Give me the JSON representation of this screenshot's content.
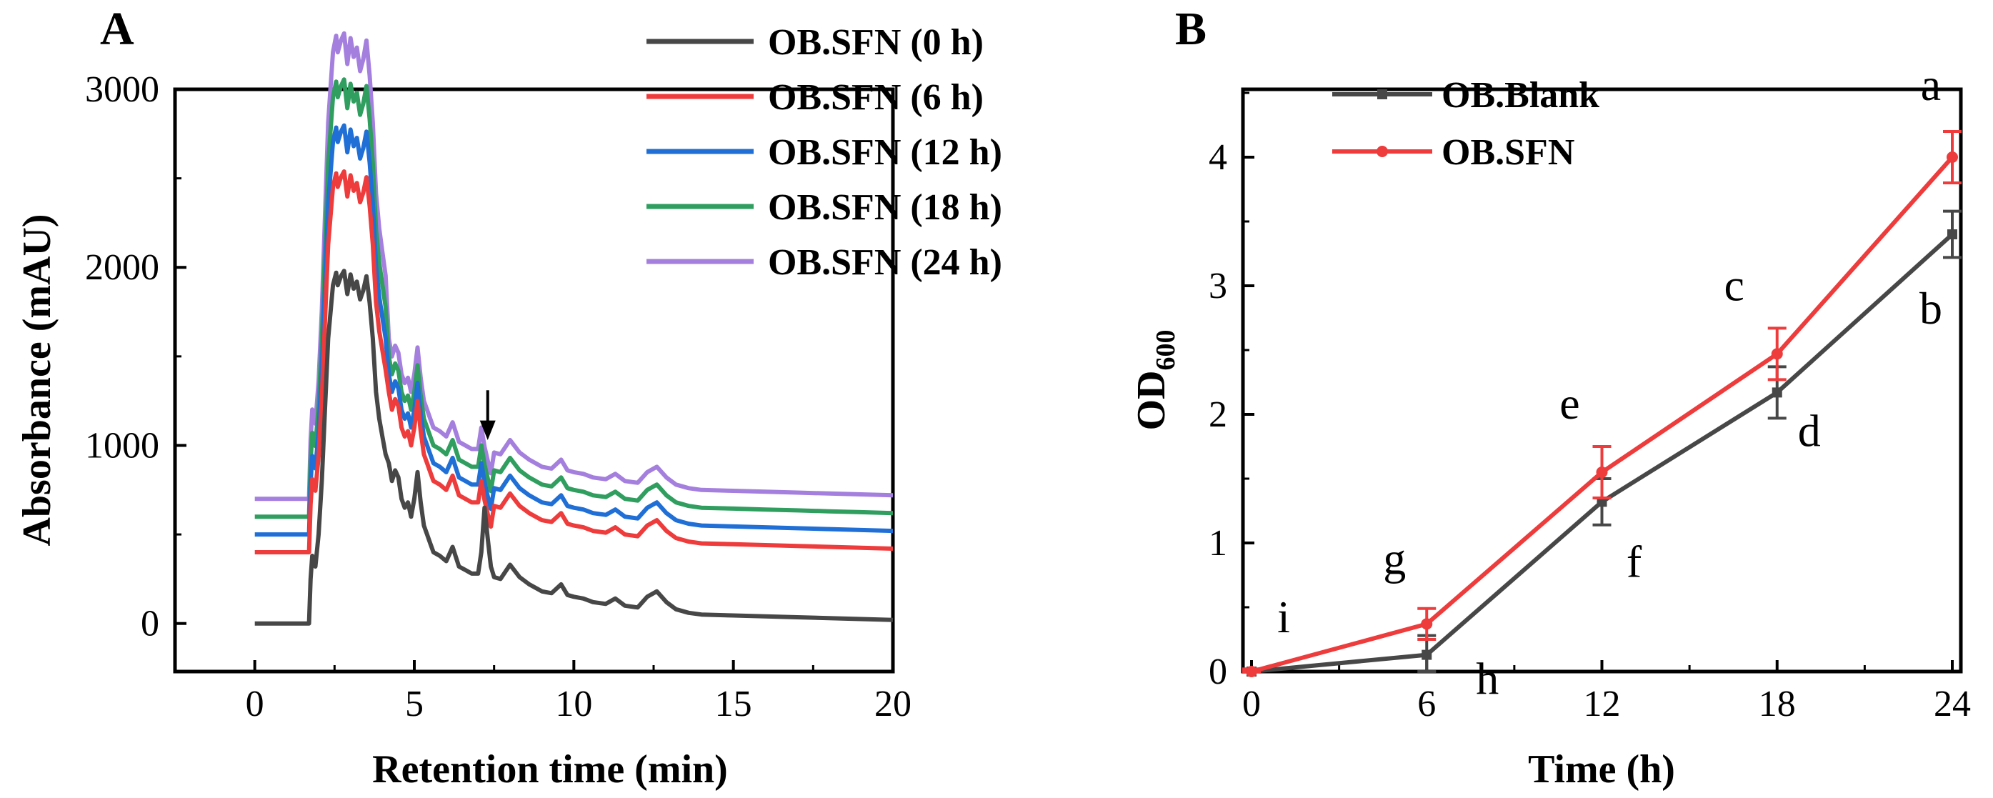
{
  "panelA": {
    "label": "A",
    "chart_data": {
      "type": "line",
      "xlabel": "Retention time (min)",
      "ylabel": "Absorbance (mAU)",
      "xlim": [
        -2.5,
        20
      ],
      "ylim": [
        -270,
        3000
      ],
      "xticks": [
        0,
        5,
        10,
        15,
        20
      ],
      "yticks": [
        0,
        1000,
        2000,
        3000
      ],
      "legend_position": "top-right",
      "annotation": "arrow at 7.3 min",
      "arrow_x": 7.3,
      "series": [
        {
          "name": "OB.SFN (0 h)",
          "color": "#474747",
          "offset": 0
        },
        {
          "name": "OB.SFN (6 h)",
          "color": "#ee3b3b",
          "offset": 400
        },
        {
          "name": "OB.SFN (12 h)",
          "color": "#1f6fd6",
          "offset": 500
        },
        {
          "name": "OB.SFN (18 h)",
          "color": "#2f9e5f",
          "offset": 600
        },
        {
          "name": "OB.SFN (24 h)",
          "color": "#a57fde",
          "offset": 700
        }
      ],
      "base_profile": {
        "x": [
          0,
          1.7,
          1.75,
          1.8,
          1.9,
          2.0,
          2.1,
          2.2,
          2.3,
          2.45,
          2.55,
          2.6,
          2.7,
          2.8,
          2.9,
          3.0,
          3.1,
          3.2,
          3.3,
          3.4,
          3.5,
          3.6,
          3.7,
          3.8,
          3.9,
          4.0,
          4.1,
          4.2,
          4.3,
          4.4,
          4.5,
          4.6,
          4.7,
          4.8,
          4.9,
          5.0,
          5.1,
          5.2,
          5.3,
          5.4,
          5.5,
          5.6,
          5.8,
          6.0,
          6.2,
          6.4,
          6.6,
          6.8,
          7.0,
          7.1,
          7.2,
          7.3,
          7.4,
          7.5,
          7.7,
          8.0,
          8.3,
          8.6,
          9.0,
          9.3,
          9.6,
          9.8,
          10.0,
          10.3,
          10.6,
          11.0,
          11.3,
          11.6,
          12.0,
          12.3,
          12.6,
          12.9,
          13.2,
          13.6,
          14.0,
          15.0,
          16.0,
          17.0,
          18.0,
          19.0,
          20.0
        ],
        "y": [
          0,
          0,
          250,
          380,
          320,
          500,
          800,
          1200,
          1600,
          1900,
          1970,
          1900,
          1950,
          1980,
          1850,
          1960,
          1880,
          1920,
          1820,
          1870,
          1950,
          1800,
          1600,
          1300,
          1150,
          1050,
          950,
          900,
          800,
          860,
          820,
          700,
          650,
          680,
          600,
          700,
          850,
          680,
          550,
          500,
          450,
          400,
          380,
          350,
          430,
          320,
          300,
          280,
          280,
          400,
          650,
          480,
          320,
          260,
          250,
          330,
          260,
          220,
          180,
          170,
          220,
          160,
          150,
          140,
          120,
          110,
          140,
          100,
          90,
          150,
          180,
          120,
          80,
          60,
          50,
          45,
          40,
          35,
          30,
          25,
          20
        ]
      }
    }
  },
  "panelB": {
    "label": "B",
    "chart_data": {
      "type": "line",
      "xlabel": "Time (h)",
      "ylabel_main": "OD",
      "ylabel_sub": "600",
      "xlim": [
        0,
        24
      ],
      "ylim": [
        0,
        4.5
      ],
      "xticks": [
        0,
        6,
        12,
        18,
        24
      ],
      "yticks": [
        0,
        1,
        2,
        3,
        4
      ],
      "legend_position": "top-left",
      "x": [
        0,
        6,
        12,
        18,
        24
      ],
      "series": [
        {
          "name": "OB.Blank",
          "color": "#474747",
          "marker": "square",
          "values": [
            0,
            0.13,
            1.32,
            2.17,
            3.4
          ],
          "errors": [
            0.02,
            0.15,
            0.18,
            0.2,
            0.18
          ]
        },
        {
          "name": "OB.SFN",
          "color": "#ee3b3b",
          "marker": "circle",
          "values": [
            0,
            0.37,
            1.55,
            2.47,
            4.0
          ],
          "errors": [
            0.02,
            0.12,
            0.2,
            0.2,
            0.2
          ]
        }
      ],
      "letters": [
        {
          "text": "i",
          "x": 0,
          "y": 0
        },
        {
          "text": "g",
          "x": 6,
          "y": 0.37
        },
        {
          "text": "h",
          "x": 6,
          "y": 0.13
        },
        {
          "text": "e",
          "x": 12,
          "y": 1.55
        },
        {
          "text": "f",
          "x": 12,
          "y": 1.32
        },
        {
          "text": "c",
          "x": 18,
          "y": 2.47
        },
        {
          "text": "d",
          "x": 18,
          "y": 2.17
        },
        {
          "text": "a",
          "x": 24,
          "y": 4.0
        },
        {
          "text": "b",
          "x": 24,
          "y": 3.4
        }
      ]
    }
  }
}
